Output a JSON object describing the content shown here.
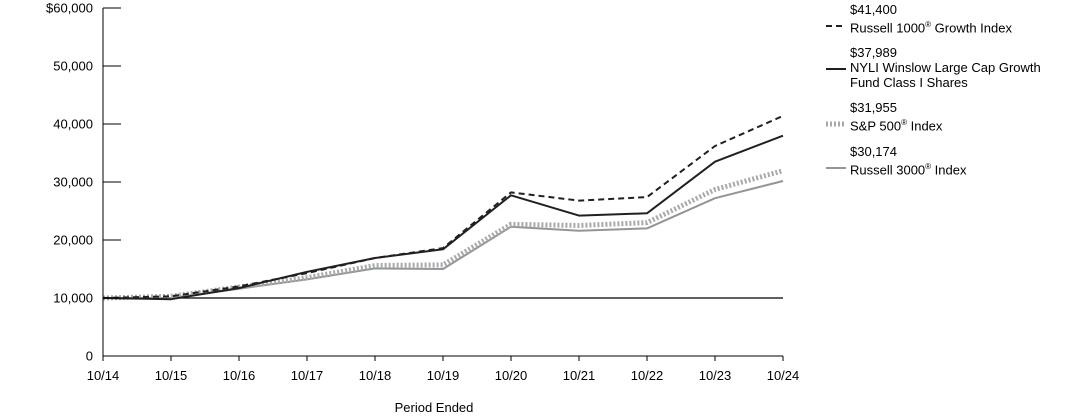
{
  "chart_data": {
    "type": "line",
    "title": "",
    "xlabel": "Period Ended",
    "ylabel": "",
    "categories": [
      "10/14",
      "10/15",
      "10/16",
      "10/17",
      "10/18",
      "10/19",
      "10/20",
      "10/21",
      "10/22",
      "10/23",
      "10/24"
    ],
    "ylim": [
      0,
      60000
    ],
    "y_ticks": [
      {
        "value": 0,
        "label": "0"
      },
      {
        "value": 10000,
        "label": "10,000"
      },
      {
        "value": 20000,
        "label": "20,000"
      },
      {
        "value": 30000,
        "label": "30,000"
      },
      {
        "value": 40000,
        "label": "40,000"
      },
      {
        "value": 50000,
        "label": "50,000"
      },
      {
        "value": 60000,
        "label": "$60,000"
      }
    ],
    "reference_line": 10000,
    "series": [
      {
        "name": "Russell 1000® Growth Index",
        "name_text": "Russell 1000",
        "name_sup": "®",
        "name_rest": " Growth Index",
        "ending_value": "$41,400",
        "color": "#231f20",
        "style": "dashed",
        "values": [
          10000,
          10300,
          12000,
          14300,
          16900,
          18600,
          28200,
          26800,
          27400,
          36200,
          41400
        ]
      },
      {
        "name": "NYLI Winslow Large Cap Growth Fund Class I Shares",
        "name_line1": "NYLI Winslow Large Cap Growth",
        "name_line2": "Fund Class I Shares",
        "ending_value": "$37,989",
        "color": "#231f20",
        "style": "solid",
        "values": [
          10000,
          9800,
          11700,
          14500,
          16900,
          18400,
          27700,
          24200,
          24600,
          33500,
          37989
        ]
      },
      {
        "name": "S&P 500® Index",
        "name_text": "S&P 500",
        "name_sup": "®",
        "name_rest": " Index",
        "ending_value": "$31,955",
        "color": "#a7a9ac",
        "style": "dotted",
        "values": [
          10000,
          10300,
          11900,
          13500,
          15600,
          15700,
          22700,
          22500,
          23000,
          28700,
          31955
        ]
      },
      {
        "name": "Russell 3000® Index",
        "name_text": "Russell 3000",
        "name_sup": "®",
        "name_rest": " Index",
        "ending_value": "$30,174",
        "color": "#939598",
        "style": "solid",
        "values": [
          10000,
          10000,
          11600,
          13200,
          15100,
          15000,
          22300,
          21600,
          22000,
          27200,
          30174
        ]
      }
    ]
  }
}
